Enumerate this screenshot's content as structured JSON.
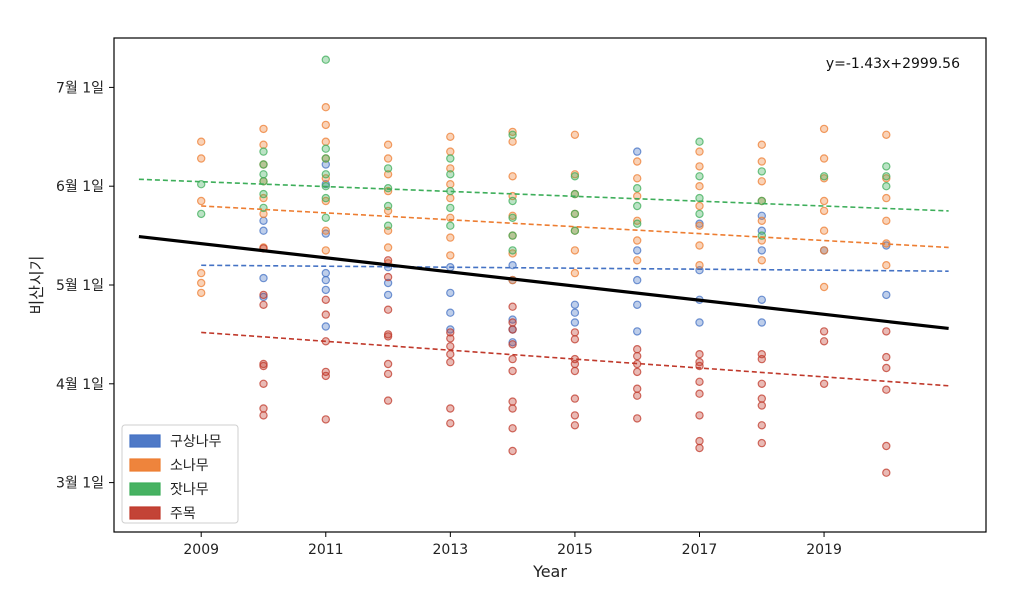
{
  "chart_data": {
    "type": "scatter",
    "title": "",
    "xlabel": "Year",
    "ylabel": "비산시기",
    "xlim": [
      2007.6,
      2021.6
    ],
    "ylim": [
      0.0,
      5.0
    ],
    "x_ticks": [
      2009,
      2011,
      2013,
      2015,
      2017,
      2019
    ],
    "y_ticks": [
      {
        "value": 0.5,
        "label": "3월 1일"
      },
      {
        "value": 1.5,
        "label": "4월 1일"
      },
      {
        "value": 2.5,
        "label": "5월 1일"
      },
      {
        "value": 3.5,
        "label": "6월 1일"
      },
      {
        "value": 4.5,
        "label": "7월 1일"
      }
    ],
    "annotation": "y=-1.43x+2999.56",
    "legend_position": "bottom-left",
    "grid": false,
    "overall_trend": {
      "x": [
        2008.0,
        2021.0
      ],
      "y": [
        2.99,
        2.06
      ],
      "color": "#000000"
    },
    "series": [
      {
        "name": "구상나무",
        "color": "#4472C4",
        "trend": {
          "x": [
            2009.0,
            2021.0
          ],
          "y": [
            2.7,
            2.64
          ]
        },
        "points": [
          [
            2010,
            3.05
          ],
          [
            2010,
            3.15
          ],
          [
            2010,
            2.57
          ],
          [
            2010,
            2.38
          ],
          [
            2011,
            3.72
          ],
          [
            2011,
            3.52
          ],
          [
            2011,
            3.02
          ],
          [
            2011,
            2.62
          ],
          [
            2011,
            2.55
          ],
          [
            2011,
            2.45
          ],
          [
            2011,
            2.08
          ],
          [
            2012,
            2.68
          ],
          [
            2012,
            2.52
          ],
          [
            2012,
            2.4
          ],
          [
            2013,
            2.68
          ],
          [
            2013,
            2.42
          ],
          [
            2013,
            2.22
          ],
          [
            2013,
            2.05
          ],
          [
            2014,
            2.7
          ],
          [
            2014,
            2.55
          ],
          [
            2014,
            2.15
          ],
          [
            2014,
            2.05
          ],
          [
            2014,
            1.92
          ],
          [
            2015,
            2.3
          ],
          [
            2015,
            2.22
          ],
          [
            2015,
            2.12
          ],
          [
            2016,
            3.85
          ],
          [
            2016,
            2.85
          ],
          [
            2016,
            2.55
          ],
          [
            2016,
            2.3
          ],
          [
            2016,
            2.03
          ],
          [
            2017,
            3.12
          ],
          [
            2017,
            2.65
          ],
          [
            2017,
            2.35
          ],
          [
            2017,
            2.12
          ],
          [
            2018,
            3.2
          ],
          [
            2018,
            3.05
          ],
          [
            2018,
            2.85
          ],
          [
            2018,
            2.35
          ],
          [
            2018,
            2.12
          ],
          [
            2019,
            2.85
          ],
          [
            2020,
            2.9
          ],
          [
            2020,
            2.4
          ]
        ]
      },
      {
        "name": "소나무",
        "color": "#ED7D31",
        "trend": {
          "x": [
            2009.0,
            2021.0
          ],
          "y": [
            3.3,
            2.88
          ]
        },
        "points": [
          [
            2009,
            3.95
          ],
          [
            2009,
            3.78
          ],
          [
            2009,
            3.35
          ],
          [
            2009,
            2.62
          ],
          [
            2009,
            2.52
          ],
          [
            2009,
            2.42
          ],
          [
            2010,
            4.08
          ],
          [
            2010,
            3.92
          ],
          [
            2010,
            3.72
          ],
          [
            2010,
            3.55
          ],
          [
            2010,
            3.38
          ],
          [
            2010,
            3.22
          ],
          [
            2010,
            2.88
          ],
          [
            2011,
            4.3
          ],
          [
            2011,
            4.12
          ],
          [
            2011,
            3.95
          ],
          [
            2011,
            3.78
          ],
          [
            2011,
            3.58
          ],
          [
            2011,
            3.35
          ],
          [
            2011,
            3.05
          ],
          [
            2011,
            2.85
          ],
          [
            2012,
            3.92
          ],
          [
            2012,
            3.78
          ],
          [
            2012,
            3.62
          ],
          [
            2012,
            3.45
          ],
          [
            2012,
            3.25
          ],
          [
            2012,
            3.05
          ],
          [
            2012,
            2.88
          ],
          [
            2012,
            2.72
          ],
          [
            2013,
            4.0
          ],
          [
            2013,
            3.85
          ],
          [
            2013,
            3.68
          ],
          [
            2013,
            3.52
          ],
          [
            2013,
            3.38
          ],
          [
            2013,
            3.18
          ],
          [
            2013,
            2.98
          ],
          [
            2013,
            2.8
          ],
          [
            2014,
            4.05
          ],
          [
            2014,
            3.95
          ],
          [
            2014,
            3.6
          ],
          [
            2014,
            3.4
          ],
          [
            2014,
            3.2
          ],
          [
            2014,
            3.0
          ],
          [
            2014,
            2.82
          ],
          [
            2014,
            2.55
          ],
          [
            2015,
            4.02
          ],
          [
            2015,
            3.62
          ],
          [
            2015,
            3.42
          ],
          [
            2015,
            3.22
          ],
          [
            2015,
            3.05
          ],
          [
            2015,
            2.85
          ],
          [
            2015,
            2.62
          ],
          [
            2016,
            3.75
          ],
          [
            2016,
            3.58
          ],
          [
            2016,
            3.4
          ],
          [
            2016,
            3.15
          ],
          [
            2016,
            2.95
          ],
          [
            2016,
            2.75
          ],
          [
            2017,
            3.85
          ],
          [
            2017,
            3.7
          ],
          [
            2017,
            3.5
          ],
          [
            2017,
            3.3
          ],
          [
            2017,
            3.1
          ],
          [
            2017,
            2.9
          ],
          [
            2017,
            2.7
          ],
          [
            2018,
            3.92
          ],
          [
            2018,
            3.75
          ],
          [
            2018,
            3.55
          ],
          [
            2018,
            3.35
          ],
          [
            2018,
            3.15
          ],
          [
            2018,
            2.95
          ],
          [
            2018,
            2.75
          ],
          [
            2019,
            4.08
          ],
          [
            2019,
            3.78
          ],
          [
            2019,
            3.58
          ],
          [
            2019,
            3.35
          ],
          [
            2019,
            3.25
          ],
          [
            2019,
            3.05
          ],
          [
            2019,
            2.85
          ],
          [
            2019,
            2.48
          ],
          [
            2020,
            4.02
          ],
          [
            2020,
            3.58
          ],
          [
            2020,
            3.38
          ],
          [
            2020,
            3.15
          ],
          [
            2020,
            2.92
          ],
          [
            2020,
            2.7
          ]
        ]
      },
      {
        "name": "잣나무",
        "color": "#3DAE5A",
        "trend": {
          "x": [
            2008.0,
            2021.0
          ],
          "y": [
            3.57,
            3.25
          ]
        },
        "points": [
          [
            2009,
            3.52
          ],
          [
            2009,
            3.22
          ],
          [
            2010,
            3.85
          ],
          [
            2010,
            3.72
          ],
          [
            2010,
            3.62
          ],
          [
            2010,
            3.55
          ],
          [
            2010,
            3.42
          ],
          [
            2010,
            3.28
          ],
          [
            2011,
            4.78
          ],
          [
            2011,
            3.88
          ],
          [
            2011,
            3.78
          ],
          [
            2011,
            3.62
          ],
          [
            2011,
            3.5
          ],
          [
            2011,
            3.38
          ],
          [
            2011,
            3.18
          ],
          [
            2012,
            3.68
          ],
          [
            2012,
            3.48
          ],
          [
            2012,
            3.3
          ],
          [
            2012,
            3.1
          ],
          [
            2013,
            3.78
          ],
          [
            2013,
            3.62
          ],
          [
            2013,
            3.45
          ],
          [
            2013,
            3.28
          ],
          [
            2013,
            3.1
          ],
          [
            2014,
            4.02
          ],
          [
            2014,
            3.35
          ],
          [
            2014,
            3.18
          ],
          [
            2014,
            3.0
          ],
          [
            2014,
            2.85
          ],
          [
            2015,
            3.6
          ],
          [
            2015,
            3.42
          ],
          [
            2015,
            3.22
          ],
          [
            2015,
            3.05
          ],
          [
            2016,
            3.48
          ],
          [
            2016,
            3.3
          ],
          [
            2016,
            3.12
          ],
          [
            2017,
            3.95
          ],
          [
            2017,
            3.6
          ],
          [
            2017,
            3.38
          ],
          [
            2017,
            3.22
          ],
          [
            2018,
            3.65
          ],
          [
            2018,
            3.35
          ],
          [
            2018,
            3.0
          ],
          [
            2019,
            3.6
          ],
          [
            2020,
            3.7
          ],
          [
            2020,
            3.6
          ],
          [
            2020,
            3.5
          ]
        ]
      },
      {
        "name": "주목",
        "color": "#C0392B",
        "trend": {
          "x": [
            2009.0,
            2021.0
          ],
          "y": [
            2.02,
            1.48
          ]
        },
        "points": [
          [
            2010,
            2.87
          ],
          [
            2010,
            2.4
          ],
          [
            2010,
            2.3
          ],
          [
            2010,
            1.7
          ],
          [
            2010,
            1.68
          ],
          [
            2010,
            1.5
          ],
          [
            2010,
            1.25
          ],
          [
            2010,
            1.18
          ],
          [
            2011,
            2.35
          ],
          [
            2011,
            2.2
          ],
          [
            2011,
            1.93
          ],
          [
            2011,
            1.62
          ],
          [
            2011,
            1.58
          ],
          [
            2011,
            1.14
          ],
          [
            2012,
            2.75
          ],
          [
            2012,
            2.58
          ],
          [
            2012,
            2.25
          ],
          [
            2012,
            2.0
          ],
          [
            2012,
            1.98
          ],
          [
            2012,
            1.7
          ],
          [
            2012,
            1.6
          ],
          [
            2012,
            1.33
          ],
          [
            2013,
            2.02
          ],
          [
            2013,
            1.96
          ],
          [
            2013,
            1.88
          ],
          [
            2013,
            1.8
          ],
          [
            2013,
            1.72
          ],
          [
            2013,
            1.25
          ],
          [
            2013,
            1.1
          ],
          [
            2014,
            2.28
          ],
          [
            2014,
            2.12
          ],
          [
            2014,
            2.05
          ],
          [
            2014,
            1.9
          ],
          [
            2014,
            1.75
          ],
          [
            2014,
            1.63
          ],
          [
            2014,
            1.32
          ],
          [
            2014,
            1.25
          ],
          [
            2014,
            1.05
          ],
          [
            2014,
            0.82
          ],
          [
            2015,
            2.02
          ],
          [
            2015,
            1.95
          ],
          [
            2015,
            1.75
          ],
          [
            2015,
            1.7
          ],
          [
            2015,
            1.63
          ],
          [
            2015,
            1.35
          ],
          [
            2015,
            1.18
          ],
          [
            2015,
            1.08
          ],
          [
            2016,
            1.85
          ],
          [
            2016,
            1.78
          ],
          [
            2016,
            1.7
          ],
          [
            2016,
            1.62
          ],
          [
            2016,
            1.45
          ],
          [
            2016,
            1.38
          ],
          [
            2016,
            1.15
          ],
          [
            2017,
            1.8
          ],
          [
            2017,
            1.72
          ],
          [
            2017,
            1.68
          ],
          [
            2017,
            1.52
          ],
          [
            2017,
            1.4
          ],
          [
            2017,
            1.18
          ],
          [
            2017,
            0.92
          ],
          [
            2017,
            0.85
          ],
          [
            2018,
            1.8
          ],
          [
            2018,
            1.75
          ],
          [
            2018,
            1.5
          ],
          [
            2018,
            1.35
          ],
          [
            2018,
            1.28
          ],
          [
            2018,
            1.08
          ],
          [
            2018,
            0.9
          ],
          [
            2019,
            2.03
          ],
          [
            2019,
            1.93
          ],
          [
            2019,
            1.5
          ],
          [
            2020,
            2.03
          ],
          [
            2020,
            1.77
          ],
          [
            2020,
            1.66
          ],
          [
            2020,
            1.44
          ],
          [
            2020,
            0.87
          ],
          [
            2020,
            0.6
          ]
        ]
      }
    ]
  }
}
